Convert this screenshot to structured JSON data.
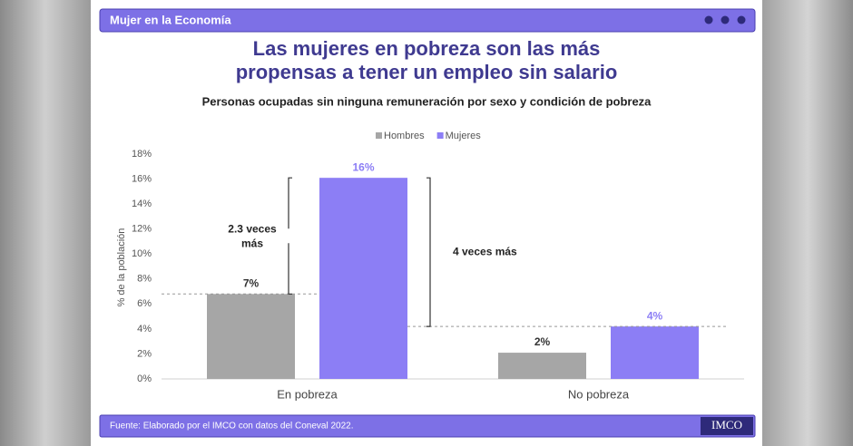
{
  "header": "Mujer en la Economía",
  "footer": "Fuente:  Elaborado por el IMCO con datos del Coneval 2022.",
  "logo": "IMCO",
  "chart_data": {
    "type": "bar",
    "title": [
      "Las mujeres en pobreza son las más",
      "propensas a tener un empleo sin salario"
    ],
    "subtitle": "Personas ocupadas sin ninguna remuneración por sexo y condición de pobreza",
    "y_label": "% de la población",
    "categories": [
      "En pobreza",
      "No pobreza"
    ],
    "series": [
      {
        "name": "Hombres",
        "color": "#a6a6a6",
        "values": [
          6.8,
          2.1
        ],
        "value_labels": [
          "7%",
          "2%"
        ]
      },
      {
        "name": "Mujeres",
        "color": "#8c7ef5",
        "values": [
          16.1,
          4.2
        ],
        "value_labels": [
          "16%",
          "4%"
        ]
      }
    ],
    "annotations": [
      {
        "lines": [
          "2.3 veces",
          "más"
        ]
      },
      {
        "lines": [
          "4 veces más"
        ]
      }
    ],
    "ylim": [
      0,
      18
    ],
    "yticks": [
      {
        "value": 0,
        "label": "0%"
      },
      {
        "value": 2,
        "label": "2%"
      },
      {
        "value": 4,
        "label": "4%"
      },
      {
        "value": 6,
        "label": "6%"
      },
      {
        "value": 8,
        "label": "8%"
      },
      {
        "value": 10,
        "label": "10%"
      },
      {
        "value": 12,
        "label": "12%"
      },
      {
        "value": 14,
        "label": "14%"
      },
      {
        "value": 16,
        "label": "16%"
      },
      {
        "value": 18,
        "label": "18%"
      }
    ],
    "grid": false
  }
}
